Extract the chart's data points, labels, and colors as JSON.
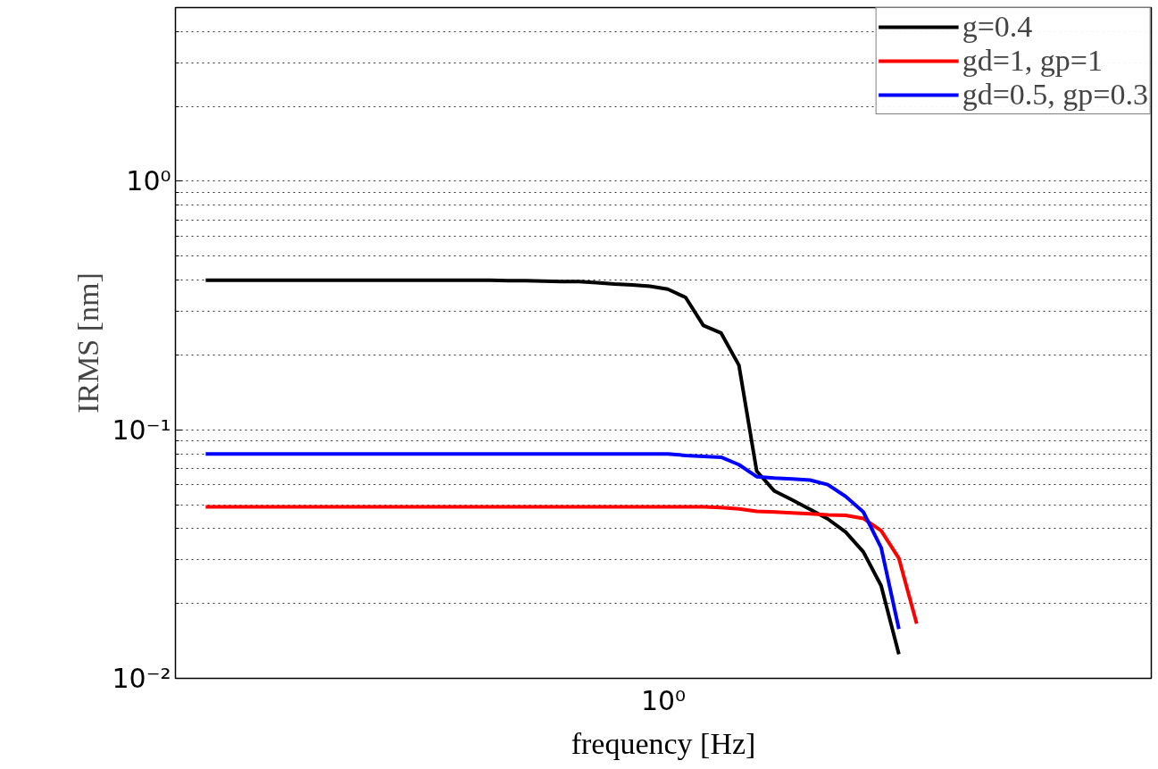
{
  "chart_data": {
    "type": "line",
    "xlabel": "frequency [Hz]",
    "ylabel": "IRMS [nm]",
    "log": "y",
    "grid": "y",
    "legend": "top right",
    "marker": "none",
    "line_style": "solid",
    "annotations": [
      "10⁰"
    ],
    "categories": [
      null,
      null,
      null,
      null,
      null,
      null,
      null,
      null,
      null,
      null,
      null,
      null,
      null,
      null,
      null,
      null,
      null,
      null,
      null,
      null,
      null,
      null,
      null,
      null,
      null,
      null,
      null,
      null,
      null,
      null,
      null,
      null,
      null,
      null,
      null,
      null,
      null,
      null,
      null,
      null,
      null,
      null,
      null,
      null,
      null,
      null,
      null,
      null,
      null,
      null,
      null,
      null,
      null,
      null
    ],
    "ylim": [
      0.01,
      5
    ],
    "yticks": [
      {
        "value": 0.01,
        "label": "10⁻²"
      },
      {
        "value": 0.02,
        "label": null
      },
      {
        "value": 0.03,
        "label": null
      },
      {
        "value": 0.04,
        "label": null
      },
      {
        "value": 0.05,
        "label": null
      },
      {
        "value": 0.06,
        "label": null
      },
      {
        "value": 0.07,
        "label": null
      },
      {
        "value": 0.08,
        "label": null
      },
      {
        "value": 0.09,
        "label": null
      },
      {
        "value": 0.1,
        "label": "10⁻¹"
      },
      {
        "value": 0.2,
        "label": null
      },
      {
        "value": 0.3,
        "label": null
      },
      {
        "value": 0.4,
        "label": null
      },
      {
        "value": 0.5,
        "label": null
      },
      {
        "value": 0.6,
        "label": null
      },
      {
        "value": 0.7,
        "label": null
      },
      {
        "value": 0.8,
        "label": null
      },
      {
        "value": 0.9,
        "label": null
      },
      {
        "value": 1,
        "label": "10⁰"
      },
      {
        "value": 2,
        "label": null
      },
      {
        "value": 3,
        "label": null
      },
      {
        "value": 4,
        "label": null
      }
    ],
    "series": [
      {
        "name": "g=0.4",
        "color": "#000000",
        "values": [
          0.4,
          0.4,
          0.4,
          0.4,
          0.4,
          0.4,
          0.4,
          0.4,
          0.4,
          0.4,
          0.4,
          0.4,
          0.4,
          0.4,
          0.4,
          0.4,
          0.4,
          0.398,
          0.398,
          0.397,
          0.395,
          0.395,
          0.391,
          0.386,
          0.383,
          0.378,
          0.368,
          0.341,
          0.263,
          0.245,
          0.182,
          0.0682,
          0.0567,
          0.0522,
          0.0479,
          0.0438,
          0.0388,
          0.0323,
          0.0236,
          0.0125,
          null,
          null,
          null,
          null,
          null,
          null,
          null,
          null,
          null,
          null,
          null,
          null,
          null,
          null
        ]
      },
      {
        "name": "gd=1, gp=1",
        "color": "#ff0000",
        "values": [
          0.049,
          0.049,
          0.049,
          0.049,
          0.049,
          0.049,
          0.049,
          0.049,
          0.049,
          0.049,
          0.049,
          0.049,
          0.049,
          0.049,
          0.049,
          0.049,
          0.049,
          0.049,
          0.049,
          0.049,
          0.049,
          0.049,
          0.049,
          0.049,
          0.049,
          0.049,
          0.049,
          0.049,
          0.049,
          0.0487,
          0.0481,
          0.047,
          0.0467,
          0.0463,
          0.0459,
          0.0455,
          0.0453,
          0.044,
          0.0393,
          0.0304,
          0.0166,
          null,
          null,
          null,
          null,
          null,
          null,
          null,
          null,
          null,
          null,
          null,
          null,
          null
        ]
      },
      {
        "name": "gd=0.5, gp=0.3",
        "color": "#0000ff",
        "values": [
          0.08,
          0.08,
          0.08,
          0.08,
          0.08,
          0.08,
          0.08,
          0.08,
          0.08,
          0.08,
          0.08,
          0.08,
          0.08,
          0.08,
          0.08,
          0.08,
          0.08,
          0.08,
          0.08,
          0.08,
          0.08,
          0.08,
          0.08,
          0.08,
          0.08,
          0.08,
          0.08,
          0.0789,
          0.0782,
          0.0776,
          0.0724,
          0.0648,
          0.0639,
          0.0634,
          0.0628,
          0.0602,
          0.054,
          0.0467,
          0.0336,
          0.0158,
          null,
          null,
          null,
          null,
          null,
          null,
          null,
          null,
          null,
          null,
          null,
          null,
          null,
          null
        ]
      }
    ]
  }
}
